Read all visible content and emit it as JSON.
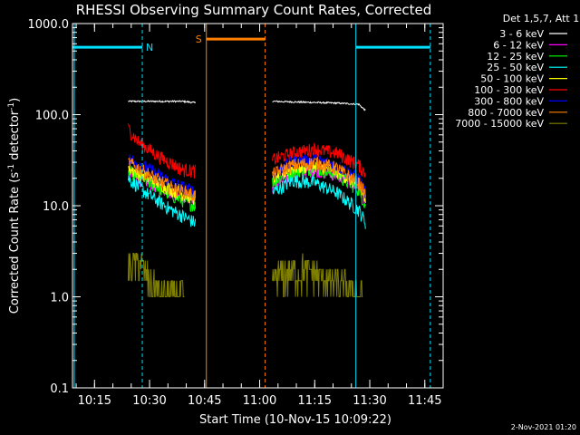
{
  "chart_data": {
    "type": "line",
    "title": "RHESSI Observing Summary Count Rates, Corrected",
    "xlabel": "Start Time (10-Nov-15 10:09:22)",
    "ylabel": "Corrected Count Rate (s",
    "ylabel_sup1": "-1",
    "ylabel_mid": " detector",
    "ylabel_sup2": "-1",
    "ylabel_end": ")",
    "yscale": "log",
    "xlim": [
      10.15,
      11.8333
    ],
    "ylim": [
      0.1,
      1000
    ],
    "x_ticks": [
      {
        "t": 10.25,
        "label": "10:15"
      },
      {
        "t": 10.5,
        "label": "10:30"
      },
      {
        "t": 10.75,
        "label": "10:45"
      },
      {
        "t": 11.0,
        "label": "11:00"
      },
      {
        "t": 11.25,
        "label": "11:15"
      },
      {
        "t": 11.5,
        "label": "11:30"
      },
      {
        "t": 11.75,
        "label": "11:45"
      }
    ],
    "y_ticks": [
      {
        "v": 0.1,
        "label": "0.1"
      },
      {
        "v": 1,
        "label": "1.0"
      },
      {
        "v": 10,
        "label": "10.0"
      },
      {
        "v": 100,
        "label": "100.0"
      },
      {
        "v": 1000,
        "label": "1000.0"
      }
    ],
    "legend_header": "Det 1,5,7, Att 1",
    "series": [
      {
        "name": "3 - 6 keV",
        "color": "#ffffff",
        "segments": [
          {
            "x": [
              10.403,
              10.45,
              10.55,
              10.65,
              10.708
            ],
            "y": [
              140,
              140,
              140,
              140,
              135
            ]
          },
          {
            "x": [
              11.058,
              11.15,
              11.25,
              11.35,
              11.45,
              11.482
            ],
            "y": [
              140,
              138,
              136,
              134,
              130,
              110
            ]
          }
        ]
      },
      {
        "name": "6 - 12 keV",
        "color": "#ff00ff",
        "segments": [
          {
            "x": [
              10.403,
              10.5,
              10.6,
              10.708
            ],
            "y": [
              22,
              18,
              14,
              12
            ]
          },
          {
            "x": [
              11.058,
              11.15,
              11.25,
              11.35,
              11.45,
              11.482
            ],
            "y": [
              16,
              22,
              25,
              22,
              16,
              11
            ]
          }
        ]
      },
      {
        "name": "12 - 25 keV",
        "color": "#00ff00",
        "segments": [
          {
            "x": [
              10.403,
              10.5,
              10.6,
              10.708
            ],
            "y": [
              24,
              18,
              13,
              10
            ]
          },
          {
            "x": [
              11.058,
              11.15,
              11.25,
              11.35,
              11.45,
              11.482
            ],
            "y": [
              18,
              24,
              26,
              22,
              15,
              10
            ]
          }
        ]
      },
      {
        "name": "25 - 50 keV",
        "color": "#00ffff",
        "segments": [
          {
            "x": [
              10.403,
              10.5,
              10.6,
              10.708
            ],
            "y": [
              20,
              13,
              9,
              6.5
            ]
          },
          {
            "x": [
              11.058,
              11.15,
              11.25,
              11.35,
              11.45,
              11.482
            ],
            "y": [
              14,
              19,
              18,
              14,
              9,
              6.5
            ]
          }
        ]
      },
      {
        "name": "50 - 100 keV",
        "color": "#ffff00",
        "segments": [
          {
            "x": [
              10.403,
              10.5,
              10.6,
              10.708
            ],
            "y": [
              26,
              20,
              15,
              12
            ]
          },
          {
            "x": [
              11.058,
              11.15,
              11.25,
              11.35,
              11.45,
              11.482
            ],
            "y": [
              20,
              26,
              28,
              24,
              17,
              11
            ]
          }
        ]
      },
      {
        "name": "100 - 300 keV",
        "color": "#ff0000",
        "segments": [
          {
            "x": [
              10.403,
              10.45,
              10.55,
              10.65,
              10.708
            ],
            "y": [
              70,
              50,
              34,
              25,
              24
            ]
          },
          {
            "x": [
              11.058,
              11.15,
              11.25,
              11.35,
              11.45,
              11.482
            ],
            "y": [
              32,
              38,
              42,
              38,
              28,
              22
            ]
          }
        ]
      },
      {
        "name": "300 - 800 keV",
        "color": "#0000ff",
        "segments": [
          {
            "x": [
              10.403,
              10.5,
              10.6,
              10.708
            ],
            "y": [
              33,
              25,
              18,
              14
            ]
          },
          {
            "x": [
              11.058,
              11.15,
              11.25,
              11.35,
              11.45,
              11.482
            ],
            "y": [
              24,
              30,
              32,
              28,
              20,
              14
            ]
          }
        ]
      },
      {
        "name": "800 - 7000 keV",
        "color": "#ff8000",
        "segments": [
          {
            "x": [
              10.403,
              10.5,
              10.6,
              10.708
            ],
            "y": [
              30,
              22,
              16,
              13
            ]
          },
          {
            "x": [
              11.058,
              11.15,
              11.25,
              11.35,
              11.45,
              11.482
            ],
            "y": [
              22,
              28,
              30,
              26,
              18,
              13
            ]
          }
        ]
      },
      {
        "name": "7000 - 15000 keV",
        "color": "#808000",
        "segments": [
          {
            "x": [
              10.403,
              10.45,
              10.5,
              10.55,
              10.6,
              10.65,
              10.66
            ],
            "y": [
              2.2,
              2.6,
              1.5,
              1.0,
              1.0,
              1.0,
              0.7
            ]
          },
          {
            "x": [
              11.058,
              11.1,
              11.2,
              11.3,
              11.4,
              11.47
            ],
            "y": [
              1.5,
              1.8,
              2.0,
              1.6,
              1.2,
              1.0
            ]
          }
        ]
      }
    ],
    "annotations": {
      "night_marker": "N",
      "saa_marker": "S",
      "night_color": "#00e0ff",
      "saa_color": "#ff8000",
      "night_intervals": [
        [
          10.15,
          10.467
        ],
        [
          11.437,
          11.775
        ]
      ],
      "saa_interval": [
        10.758,
        11.025
      ],
      "marker_level": 550
    },
    "grid": false
  },
  "footer": {
    "timestamp": "2-Nov-2021 01:20"
  }
}
